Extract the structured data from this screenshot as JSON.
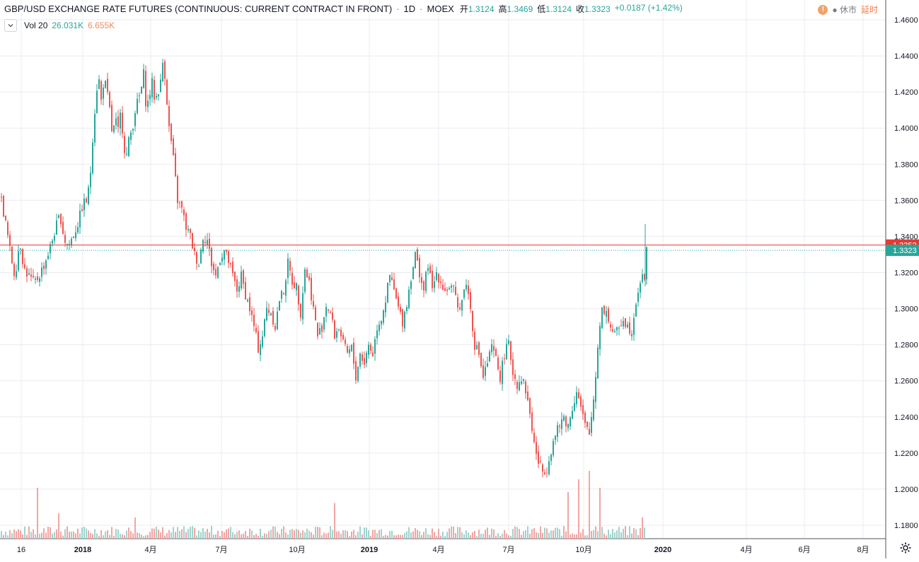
{
  "header": {
    "title": "GBP/USD EXCHANGE RATE FUTURES (CONTINUOUS: CURRENT CONTRACT IN FRONT)",
    "interval": "1D",
    "exchange": "MOEX",
    "ohlc": [
      {
        "k": "开",
        "v": "1.3124"
      },
      {
        "k": "高",
        "v": "1.3469"
      },
      {
        "k": "低",
        "v": "1.3124"
      },
      {
        "k": "收",
        "v": "1.3323"
      }
    ],
    "change": "+0.0187 (+1.42%)",
    "status_closed": "休市",
    "status_delayed": "延时"
  },
  "volume_legend": {
    "label": "Vol 20",
    "value1": "26.031K",
    "value2": "6.655K"
  },
  "colors": {
    "up": "#26a69a",
    "down": "#ef5350",
    "vol_up": "#9fd3cd",
    "vol_down": "#f2a5a3",
    "grid": "#e9ecf1",
    "level_line": "#e53935",
    "price_badge": "#26a69a"
  },
  "chart_data": {
    "type": "candlestick",
    "ylim": [
      1.175,
      1.465
    ],
    "y_ticks": [
      "1.4600",
      "1.4400",
      "1.4200",
      "1.4000",
      "1.3800",
      "1.3600",
      "1.3400",
      "1.3200",
      "1.3000",
      "1.2800",
      "1.2600",
      "1.2400",
      "1.2200",
      "1.2000",
      "1.1800"
    ],
    "x_ticks": [
      "16",
      "2018",
      "4月",
      "7月",
      "10月",
      "2019",
      "4月",
      "7月",
      "10月",
      "2020",
      "4月",
      "6月",
      "8月"
    ],
    "horizontal_line": {
      "value": 1.3352,
      "label": "1.3352"
    },
    "last_price": {
      "value": 1.3323,
      "label": "1.3323"
    },
    "series_path": [
      [
        0,
        1.362
      ],
      [
        8,
        1.345
      ],
      [
        14,
        1.33
      ],
      [
        20,
        1.318
      ],
      [
        27,
        1.338
      ],
      [
        33,
        1.322
      ],
      [
        40,
        1.318
      ],
      [
        47,
        1.314
      ],
      [
        54,
        1.318
      ],
      [
        62,
        1.325
      ],
      [
        70,
        1.334
      ],
      [
        78,
        1.345
      ],
      [
        84,
        1.352
      ],
      [
        90,
        1.338
      ],
      [
        96,
        1.335
      ],
      [
        104,
        1.342
      ],
      [
        110,
        1.348
      ],
      [
        116,
        1.358
      ],
      [
        122,
        1.36
      ],
      [
        126,
        1.37
      ],
      [
        130,
        1.395
      ],
      [
        134,
        1.415
      ],
      [
        138,
        1.43
      ],
      [
        142,
        1.415
      ],
      [
        146,
        1.428
      ],
      [
        150,
        1.42
      ],
      [
        154,
        1.41
      ],
      [
        158,
        1.395
      ],
      [
        162,
        1.405
      ],
      [
        166,
        1.398
      ],
      [
        170,
        1.41
      ],
      [
        174,
        1.39
      ],
      [
        178,
        1.385
      ],
      [
        182,
        1.395
      ],
      [
        186,
        1.4
      ],
      [
        190,
        1.41
      ],
      [
        194,
        1.415
      ],
      [
        198,
        1.42
      ],
      [
        202,
        1.43
      ],
      [
        206,
        1.41
      ],
      [
        210,
        1.418
      ],
      [
        214,
        1.425
      ],
      [
        218,
        1.415
      ],
      [
        222,
        1.42
      ],
      [
        226,
        1.425
      ],
      [
        230,
        1.44
      ],
      [
        234,
        1.42
      ],
      [
        238,
        1.4
      ],
      [
        242,
        1.39
      ],
      [
        246,
        1.375
      ],
      [
        250,
        1.36
      ],
      [
        256,
        1.355
      ],
      [
        262,
        1.345
      ],
      [
        268,
        1.34
      ],
      [
        274,
        1.33
      ],
      [
        280,
        1.325
      ],
      [
        286,
        1.34
      ],
      [
        292,
        1.338
      ],
      [
        298,
        1.325
      ],
      [
        304,
        1.318
      ],
      [
        310,
        1.328
      ],
      [
        316,
        1.332
      ],
      [
        322,
        1.326
      ],
      [
        328,
        1.318
      ],
      [
        334,
        1.31
      ],
      [
        340,
        1.318
      ],
      [
        346,
        1.308
      ],
      [
        352,
        1.3
      ],
      [
        358,
        1.29
      ],
      [
        364,
        1.278
      ],
      [
        370,
        1.285
      ],
      [
        376,
        1.3
      ],
      [
        382,
        1.298
      ],
      [
        388,
        1.29
      ],
      [
        394,
        1.305
      ],
      [
        400,
        1.31
      ],
      [
        406,
        1.325
      ],
      [
        412,
        1.315
      ],
      [
        418,
        1.312
      ],
      [
        424,
        1.298
      ],
      [
        430,
        1.322
      ],
      [
        436,
        1.315
      ],
      [
        442,
        1.3
      ],
      [
        448,
        1.285
      ],
      [
        454,
        1.29
      ],
      [
        460,
        1.302
      ],
      [
        466,
        1.298
      ],
      [
        472,
        1.285
      ],
      [
        478,
        1.29
      ],
      [
        484,
        1.28
      ],
      [
        490,
        1.275
      ],
      [
        496,
        1.278
      ],
      [
        502,
        1.262
      ],
      [
        508,
        1.275
      ],
      [
        514,
        1.27
      ],
      [
        520,
        1.28
      ],
      [
        526,
        1.275
      ],
      [
        532,
        1.29
      ],
      [
        538,
        1.295
      ],
      [
        544,
        1.305
      ],
      [
        550,
        1.318
      ],
      [
        556,
        1.31
      ],
      [
        562,
        1.3
      ],
      [
        568,
        1.293
      ],
      [
        574,
        1.303
      ],
      [
        580,
        1.318
      ],
      [
        586,
        1.33
      ],
      [
        592,
        1.32
      ],
      [
        598,
        1.31
      ],
      [
        604,
        1.325
      ],
      [
        610,
        1.31
      ],
      [
        616,
        1.32
      ],
      [
        622,
        1.315
      ],
      [
        628,
        1.31
      ],
      [
        634,
        1.312
      ],
      [
        640,
        1.31
      ],
      [
        646,
        1.3
      ],
      [
        652,
        1.305
      ],
      [
        658,
        1.315
      ],
      [
        664,
        1.3
      ],
      [
        670,
        1.28
      ],
      [
        676,
        1.275
      ],
      [
        682,
        1.262
      ],
      [
        688,
        1.27
      ],
      [
        694,
        1.278
      ],
      [
        700,
        1.272
      ],
      [
        706,
        1.262
      ],
      [
        712,
        1.275
      ],
      [
        718,
        1.28
      ],
      [
        724,
        1.265
      ],
      [
        730,
        1.258
      ],
      [
        736,
        1.262
      ],
      [
        742,
        1.255
      ],
      [
        748,
        1.242
      ],
      [
        754,
        1.225
      ],
      [
        760,
        1.215
      ],
      [
        766,
        1.21
      ],
      [
        772,
        1.212
      ],
      [
        778,
        1.222
      ],
      [
        784,
        1.23
      ],
      [
        790,
        1.235
      ],
      [
        796,
        1.24
      ],
      [
        802,
        1.235
      ],
      [
        808,
        1.245
      ],
      [
        814,
        1.255
      ],
      [
        820,
        1.245
      ],
      [
        826,
        1.235
      ],
      [
        832,
        1.23
      ],
      [
        838,
        1.25
      ],
      [
        842,
        1.268
      ],
      [
        846,
        1.29
      ],
      [
        850,
        1.3
      ],
      [
        856,
        1.298
      ],
      [
        862,
        1.29
      ],
      [
        868,
        1.285
      ],
      [
        874,
        1.29
      ],
      [
        880,
        1.295
      ],
      [
        886,
        1.29
      ],
      [
        892,
        1.288
      ],
      [
        898,
        1.305
      ],
      [
        904,
        1.315
      ],
      [
        910,
        1.318
      ],
      [
        913,
        1.3323
      ]
    ],
    "series_x_range": [
      0,
      1248
    ],
    "volume_spikes": [
      [
        52,
        0.6
      ],
      [
        81,
        0.3
      ],
      [
        190,
        0.25
      ],
      [
        470,
        0.42
      ],
      [
        800,
        0.55
      ],
      [
        815,
        0.7
      ],
      [
        830,
        0.8
      ],
      [
        845,
        0.6
      ],
      [
        907,
        0.25
      ]
    ]
  }
}
